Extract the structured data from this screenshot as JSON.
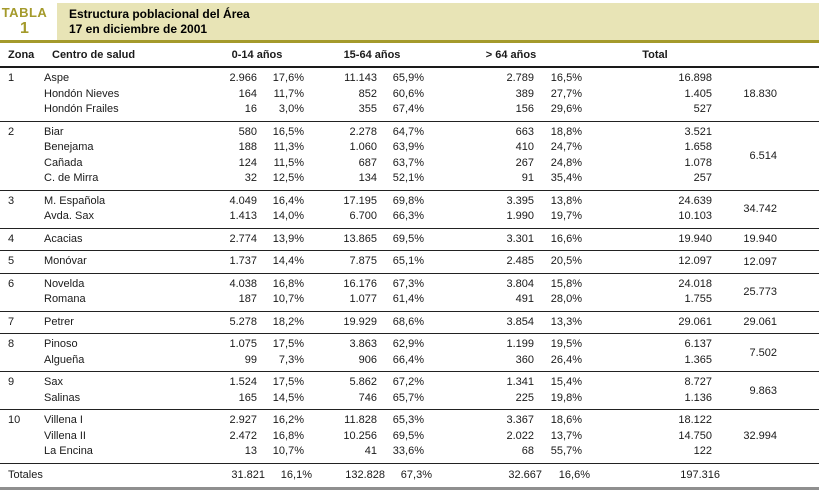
{
  "colors": {
    "accent": "#a49a2b",
    "band": "#e8e4b6"
  },
  "table": {
    "tag": "TABLA",
    "number": "1",
    "title_line1": "Estructura poblacional del Área",
    "title_line2": "17 en diciembre de 2001",
    "columns": {
      "zona": "Zona",
      "centro": "Centro de salud",
      "age1": "0-14 años",
      "age2": "15-64 años",
      "age3": "> 64 años",
      "total": "Total"
    },
    "zones": [
      {
        "zona": "1",
        "grand_total": "18.830",
        "rows": [
          {
            "centro": "Aspe",
            "v1": "2.966",
            "p1": "17,6%",
            "v2": "11.143",
            "p2": "65,9%",
            "v3": "2.789",
            "p3": "16,5%",
            "total": "16.898"
          },
          {
            "centro": "Hondón Nieves",
            "v1": "164",
            "p1": "11,7%",
            "v2": "852",
            "p2": "60,6%",
            "v3": "389",
            "p3": "27,7%",
            "total": "1.405"
          },
          {
            "centro": "Hondón Frailes",
            "v1": "16",
            "p1": "3,0%",
            "v2": "355",
            "p2": "67,4%",
            "v3": "156",
            "p3": "29,6%",
            "total": "527"
          }
        ]
      },
      {
        "zona": "2",
        "grand_total": "6.514",
        "rows": [
          {
            "centro": "Biar",
            "v1": "580",
            "p1": "16,5%",
            "v2": "2.278",
            "p2": "64,7%",
            "v3": "663",
            "p3": "18,8%",
            "total": "3.521"
          },
          {
            "centro": "Benejama",
            "v1": "188",
            "p1": "11,3%",
            "v2": "1.060",
            "p2": "63,9%",
            "v3": "410",
            "p3": "24,7%",
            "total": "1.658"
          },
          {
            "centro": "Cañada",
            "v1": "124",
            "p1": "11,5%",
            "v2": "687",
            "p2": "63,7%",
            "v3": "267",
            "p3": "24,8%",
            "total": "1.078"
          },
          {
            "centro": "C. de Mirra",
            "v1": "32",
            "p1": "12,5%",
            "v2": "134",
            "p2": "52,1%",
            "v3": "91",
            "p3": "35,4%",
            "total": "257"
          }
        ]
      },
      {
        "zona": "3",
        "grand_total": "34.742",
        "rows": [
          {
            "centro": "M. Española",
            "v1": "4.049",
            "p1": "16,4%",
            "v2": "17.195",
            "p2": "69,8%",
            "v3": "3.395",
            "p3": "13,8%",
            "total": "24.639"
          },
          {
            "centro": "Avda. Sax",
            "v1": "1.413",
            "p1": "14,0%",
            "v2": "6.700",
            "p2": "66,3%",
            "v3": "1.990",
            "p3": "19,7%",
            "total": "10.103"
          }
        ]
      },
      {
        "zona": "4",
        "grand_total": "19.940",
        "rows": [
          {
            "centro": "Acacias",
            "v1": "2.774",
            "p1": "13,9%",
            "v2": "13.865",
            "p2": "69,5%",
            "v3": "3.301",
            "p3": "16,6%",
            "total": "19.940"
          }
        ]
      },
      {
        "zona": "5",
        "grand_total": "12.097",
        "rows": [
          {
            "centro": "Monóvar",
            "v1": "1.737",
            "p1": "14,4%",
            "v2": "7.875",
            "p2": "65,1%",
            "v3": "2.485",
            "p3": "20,5%",
            "total": "12.097"
          }
        ]
      },
      {
        "zona": "6",
        "grand_total": "25.773",
        "rows": [
          {
            "centro": "Novelda",
            "v1": "4.038",
            "p1": "16,8%",
            "v2": "16.176",
            "p2": "67,3%",
            "v3": "3.804",
            "p3": "15,8%",
            "total": "24.018"
          },
          {
            "centro": "Romana",
            "v1": "187",
            "p1": "10,7%",
            "v2": "1.077",
            "p2": "61,4%",
            "v3": "491",
            "p3": "28,0%",
            "total": "1.755"
          }
        ]
      },
      {
        "zona": "7",
        "grand_total": "29.061",
        "rows": [
          {
            "centro": "Petrer",
            "v1": "5.278",
            "p1": "18,2%",
            "v2": "19.929",
            "p2": "68,6%",
            "v3": "3.854",
            "p3": "13,3%",
            "total": "29.061"
          }
        ]
      },
      {
        "zona": "8",
        "grand_total": "7.502",
        "rows": [
          {
            "centro": "Pinoso",
            "v1": "1.075",
            "p1": "17,5%",
            "v2": "3.863",
            "p2": "62,9%",
            "v3": "1.199",
            "p3": "19,5%",
            "total": "6.137"
          },
          {
            "centro": "Algueña",
            "v1": "99",
            "p1": "7,3%",
            "v2": "906",
            "p2": "66,4%",
            "v3": "360",
            "p3": "26,4%",
            "total": "1.365"
          }
        ]
      },
      {
        "zona": "9",
        "grand_total": "9.863",
        "rows": [
          {
            "centro": "Sax",
            "v1": "1.524",
            "p1": "17,5%",
            "v2": "5.862",
            "p2": "67,2%",
            "v3": "1.341",
            "p3": "15,4%",
            "total": "8.727"
          },
          {
            "centro": "Salinas",
            "v1": "165",
            "p1": "14,5%",
            "v2": "746",
            "p2": "65,7%",
            "v3": "225",
            "p3": "19,8%",
            "total": "1.136"
          }
        ]
      },
      {
        "zona": "10",
        "grand_total": "32.994",
        "rows": [
          {
            "centro": "Villena I",
            "v1": "2.927",
            "p1": "16,2%",
            "v2": "11.828",
            "p2": "65,3%",
            "v3": "3.367",
            "p3": "18,6%",
            "total": "18.122"
          },
          {
            "centro": "Villena II",
            "v1": "2.472",
            "p1": "16,8%",
            "v2": "10.256",
            "p2": "69,5%",
            "v3": "2.022",
            "p3": "13,7%",
            "total": "14.750"
          },
          {
            "centro": "La Encina",
            "v1": "13",
            "p1": "10,7%",
            "v2": "41",
            "p2": "33,6%",
            "v3": "68",
            "p3": "55,7%",
            "total": "122"
          }
        ]
      }
    ],
    "totals": {
      "label": "Totales",
      "v1": "31.821",
      "p1": "16,1%",
      "v2": "132.828",
      "p2": "67,3%",
      "v3": "32.667",
      "p3": "16,6%",
      "total": "197.316"
    }
  }
}
